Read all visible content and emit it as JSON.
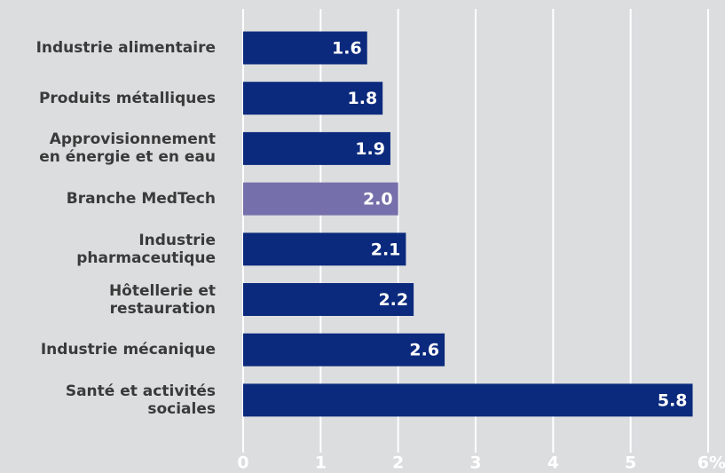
{
  "chart_data": {
    "type": "bar",
    "orientation": "horizontal",
    "categories": [
      "Industrie alimentaire",
      "Produits métalliques",
      "Approvisionnement\nen énergie et en eau",
      "Branche MedTech",
      "Industrie\npharmaceutique",
      "Hôtellerie et\nrestauration",
      "Industrie mécanique",
      "Santé et activités\nsociales"
    ],
    "values": [
      1.6,
      1.8,
      1.9,
      2.0,
      2.1,
      2.2,
      2.6,
      5.8
    ],
    "value_labels": [
      "1.6",
      "1.8",
      "1.9",
      "2.0",
      "2.1",
      "2.2",
      "2.6",
      "5.8"
    ],
    "colors": [
      "#0b2a7d",
      "#0b2a7d",
      "#0b2a7d",
      "#7570ab",
      "#0b2a7d",
      "#0b2a7d",
      "#0b2a7d",
      "#0b2a7d"
    ],
    "xlim": [
      0,
      6
    ],
    "xticks": [
      0,
      1,
      2,
      3,
      4,
      5,
      {
        "value": 6,
        "label": "6%"
      }
    ],
    "grid": true
  }
}
